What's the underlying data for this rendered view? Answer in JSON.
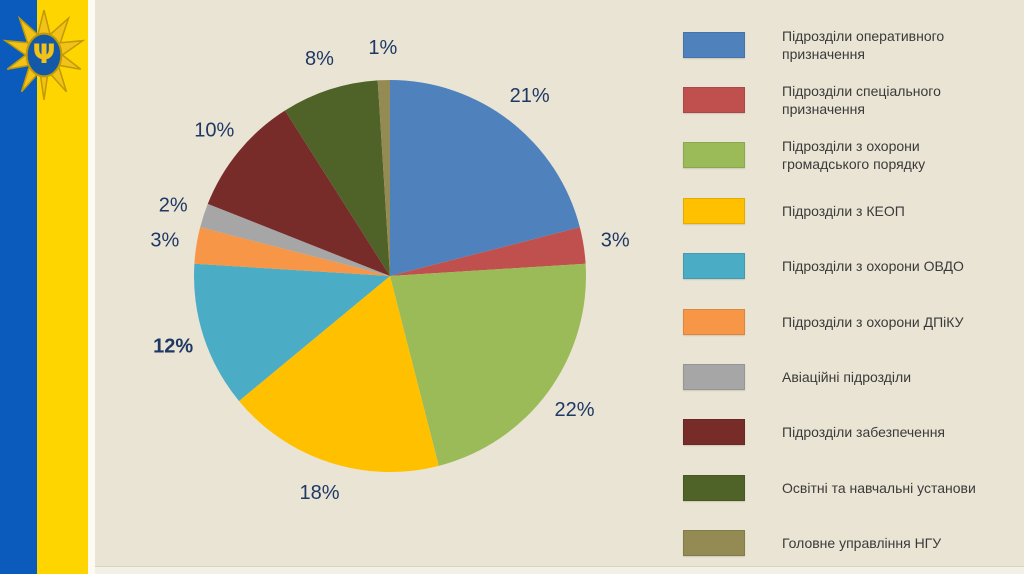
{
  "slide": {
    "background_color": "#EAE4D4"
  },
  "flag": {
    "blue": "#0A5BBB",
    "yellow": "#FFD500",
    "emblem": "national-guard-of-ukraine-emblem"
  },
  "chart_data": {
    "type": "pie",
    "title": "",
    "start_angle_deg": 0,
    "direction": "clockwise",
    "legend_position": "right",
    "label_color": "#1F3864",
    "slices": [
      {
        "label": "Підрозділи оперативного призначення",
        "value": 21,
        "pct": "21%",
        "color": "#4F81BD",
        "bold": false
      },
      {
        "label": "Підрозділи спеціального призначення",
        "value": 3,
        "pct": "3%",
        "color": "#C0504D",
        "bold": false
      },
      {
        "label": "Підрозділи з охорони громадського порядку",
        "value": 22,
        "pct": "22%",
        "color": "#9BBB59",
        "bold": false
      },
      {
        "label": "Підрозділи з КЕОП",
        "value": 18,
        "pct": "18%",
        "color": "#FFC000",
        "bold": false
      },
      {
        "label": "Підрозділи з охорони ОВДО",
        "value": 12,
        "pct": "12%",
        "color": "#4BACC6",
        "bold": true
      },
      {
        "label": "Підрозділи з охорони ДПіКУ",
        "value": 3,
        "pct": "3%",
        "color": "#F79646",
        "bold": false
      },
      {
        "label": "Авіаційні підрозділи",
        "value": 2,
        "pct": "2%",
        "color": "#A6A6A6",
        "bold": false
      },
      {
        "label": "Підрозділи забезпечення",
        "value": 10,
        "pct": "10%",
        "color": "#772C2A",
        "bold": false
      },
      {
        "label": "Освітні та навчальні установи",
        "value": 8,
        "pct": "8%",
        "color": "#4F6228",
        "bold": false
      },
      {
        "label": "Головне управління НГУ",
        "value": 1,
        "pct": "1%",
        "color": "#948A54",
        "bold": false
      }
    ]
  }
}
